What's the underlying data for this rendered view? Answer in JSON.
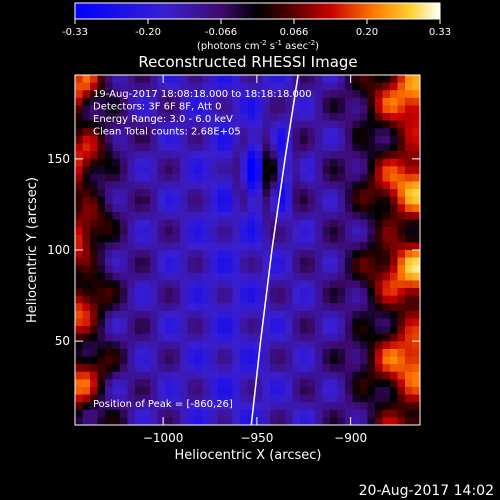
{
  "colorbar": {
    "ticks": [
      "-0.33",
      "-0.20",
      "-0.066",
      "0.066",
      "0.20",
      "0.33"
    ],
    "unit_prefix": "(photons cm",
    "unit_exp1": "-2",
    "unit_mid": " s",
    "unit_exp2": "-1",
    "unit_mid2": " asec",
    "unit_exp3": "-2",
    "unit_suffix": ")"
  },
  "chart_data": {
    "type": "heatmap",
    "title": "Reconstructed RHESSI Image",
    "xlabel": "Heliocentric X (arcsec)",
    "ylabel": "Heliocentric Y (arcsec)",
    "xlim": [
      -1047,
      -863
    ],
    "ylim": [
      4,
      196
    ],
    "xticks": [
      {
        "value": -1000,
        "label": "−1000"
      },
      {
        "value": -950,
        "label": "−950"
      },
      {
        "value": -900,
        "label": "−900"
      }
    ],
    "yticks": [
      {
        "value": 50,
        "label": "50"
      },
      {
        "value": 100,
        "label": "100"
      },
      {
        "value": 150,
        "label": "150"
      }
    ],
    "colorscale": "red-temperature (blue negative, white positive)",
    "value_range": [
      -0.33,
      0.33
    ],
    "annotations": [
      "19-Aug-2017 18:08:18.000 to 18:18:18.000",
      "Detectors: 3F 6F 8F, Att 0",
      "Energy Range: 3.0 - 6.0 keV",
      "Clean     Total counts: 2.68E+05"
    ],
    "peak_label": "Position of Peak = [-860,26]",
    "peak": {
      "x": -860,
      "y": 26
    },
    "limb_line": [
      [
        -953,
        4
      ],
      [
        -948,
        50
      ],
      [
        -942,
        100
      ],
      [
        -935,
        150
      ],
      [
        -928,
        196
      ]
    ]
  },
  "footer": {
    "date": "20-Aug-2017 14:02"
  }
}
